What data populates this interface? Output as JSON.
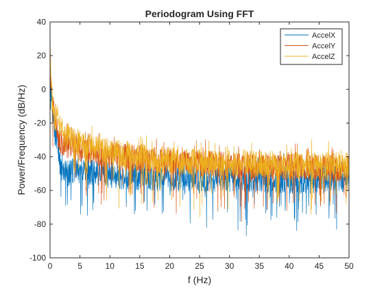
{
  "chart_data": {
    "type": "line",
    "title": "Periodogram Using FFT",
    "xlabel": "f (Hz)",
    "ylabel": "Power/Frequency (dB/Hz)",
    "xlim": [
      0,
      50
    ],
    "ylim": [
      -100,
      40
    ],
    "xticks": [
      0,
      5,
      10,
      15,
      20,
      25,
      30,
      35,
      40,
      45,
      50
    ],
    "yticks": [
      -100,
      -80,
      -60,
      -40,
      -20,
      0,
      20,
      40
    ],
    "grid": false,
    "legend_position": "top-right",
    "series": [
      {
        "name": "AccelX",
        "color": "#0072BD",
        "x": [
          0,
          0.1,
          0.3,
          0.6,
          1,
          1.5,
          2,
          3,
          4,
          5,
          7,
          10,
          15,
          20,
          25,
          30,
          35,
          40,
          45,
          50
        ],
        "y": [
          25,
          5,
          -8,
          -18,
          -28,
          -40,
          -50,
          -50,
          -48,
          -48,
          -49,
          -51,
          -52,
          -53,
          -53,
          -53,
          -53,
          -54,
          -54,
          -53
        ]
      },
      {
        "name": "AccelY",
        "color": "#D95319",
        "x": [
          0,
          0.1,
          0.3,
          0.6,
          1,
          1.5,
          2,
          3,
          4,
          5,
          7,
          10,
          15,
          20,
          25,
          30,
          35,
          40,
          45,
          50
        ],
        "y": [
          30,
          8,
          -3,
          -14,
          -22,
          -28,
          -32,
          -33,
          -34,
          -35,
          -37,
          -39,
          -41,
          -43,
          -44,
          -45,
          -46,
          -46,
          -47,
          -47
        ]
      },
      {
        "name": "AccelZ",
        "color": "#EDB120",
        "x": [
          0,
          0.1,
          0.3,
          0.6,
          1,
          1.5,
          2,
          3,
          4,
          5,
          7,
          10,
          15,
          20,
          25,
          30,
          35,
          40,
          45,
          50
        ],
        "y": [
          35,
          6,
          -5,
          -12,
          -18,
          -22,
          -25,
          -28,
          -30,
          -32,
          -35,
          -37,
          -40,
          -42,
          -43,
          -44,
          -44,
          -45,
          -45,
          -45
        ]
      }
    ]
  }
}
